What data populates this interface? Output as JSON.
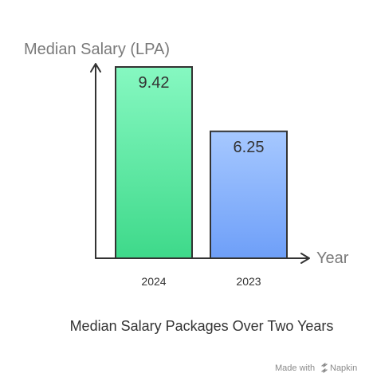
{
  "chart_data": {
    "type": "bar",
    "categories": [
      "2024",
      "2023"
    ],
    "values": [
      9.42,
      6.25
    ],
    "value_labels": [
      "9.42",
      "6.25"
    ],
    "title": "Median Salary Packages Over Two Years",
    "xlabel": "Year",
    "ylabel": "Median Salary (LPA)",
    "ylim": [
      0,
      9.42
    ],
    "grid": false,
    "bar_colors": [
      {
        "top": "#86f8c1",
        "bottom": "#3ed98a"
      },
      {
        "top": "#a6c8ff",
        "bottom": "#6e9ff8"
      }
    ],
    "bar_stroke": "#333333",
    "axis_color": "#333333"
  },
  "footer": {
    "made_with": "Made with",
    "brand": "Napkin"
  }
}
